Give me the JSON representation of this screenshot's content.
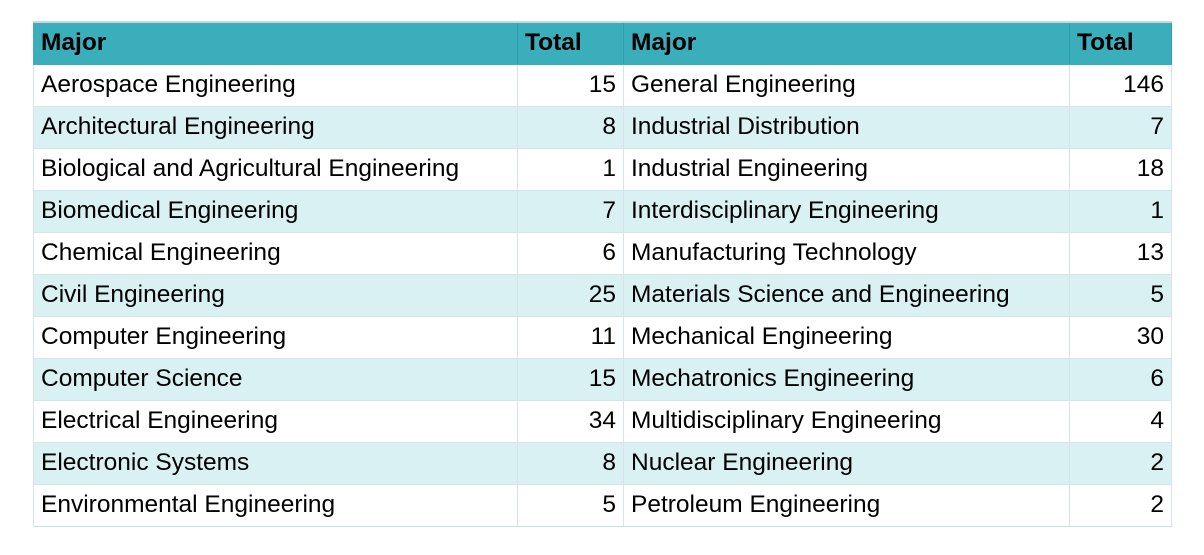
{
  "table": {
    "headers": [
      "Major",
      "Total",
      "Major",
      "Total"
    ],
    "rows": [
      {
        "major1": "Aerospace Engineering",
        "total1": "15",
        "major2": "General Engineering",
        "total2": "146"
      },
      {
        "major1": "Architectural Engineering",
        "total1": "8",
        "major2": "Industrial Distribution",
        "total2": "7"
      },
      {
        "major1": "Biological and Agricultural Engineering",
        "total1": "1",
        "major2": "Industrial Engineering",
        "total2": "18"
      },
      {
        "major1": "Biomedical Engineering",
        "total1": "7",
        "major2": "Interdisciplinary Engineering",
        "total2": "1"
      },
      {
        "major1": "Chemical Engineering",
        "total1": "6",
        "major2": "Manufacturing Technology",
        "total2": "13"
      },
      {
        "major1": "Civil Engineering",
        "total1": "25",
        "major2": "Materials Science and Engineering",
        "total2": "5"
      },
      {
        "major1": "Computer Engineering",
        "total1": "11",
        "major2": "Mechanical Engineering",
        "total2": "30"
      },
      {
        "major1": "Computer Science",
        "total1": "15",
        "major2": "Mechatronics Engineering",
        "total2": "6"
      },
      {
        "major1": "Electrical Engineering",
        "total1": "34",
        "major2": "Multidisciplinary Engineering",
        "total2": "4"
      },
      {
        "major1": "Electronic Systems",
        "total1": "8",
        "major2": "Nuclear Engineering",
        "total2": "2"
      },
      {
        "major1": "Environmental Engineering",
        "total1": "5",
        "major2": "Petroleum Engineering",
        "total2": "2"
      }
    ]
  },
  "colors": {
    "header_bg": "#3aaebb",
    "row_alt_bg": "#d9f1f3",
    "row_bg": "#ffffff"
  }
}
